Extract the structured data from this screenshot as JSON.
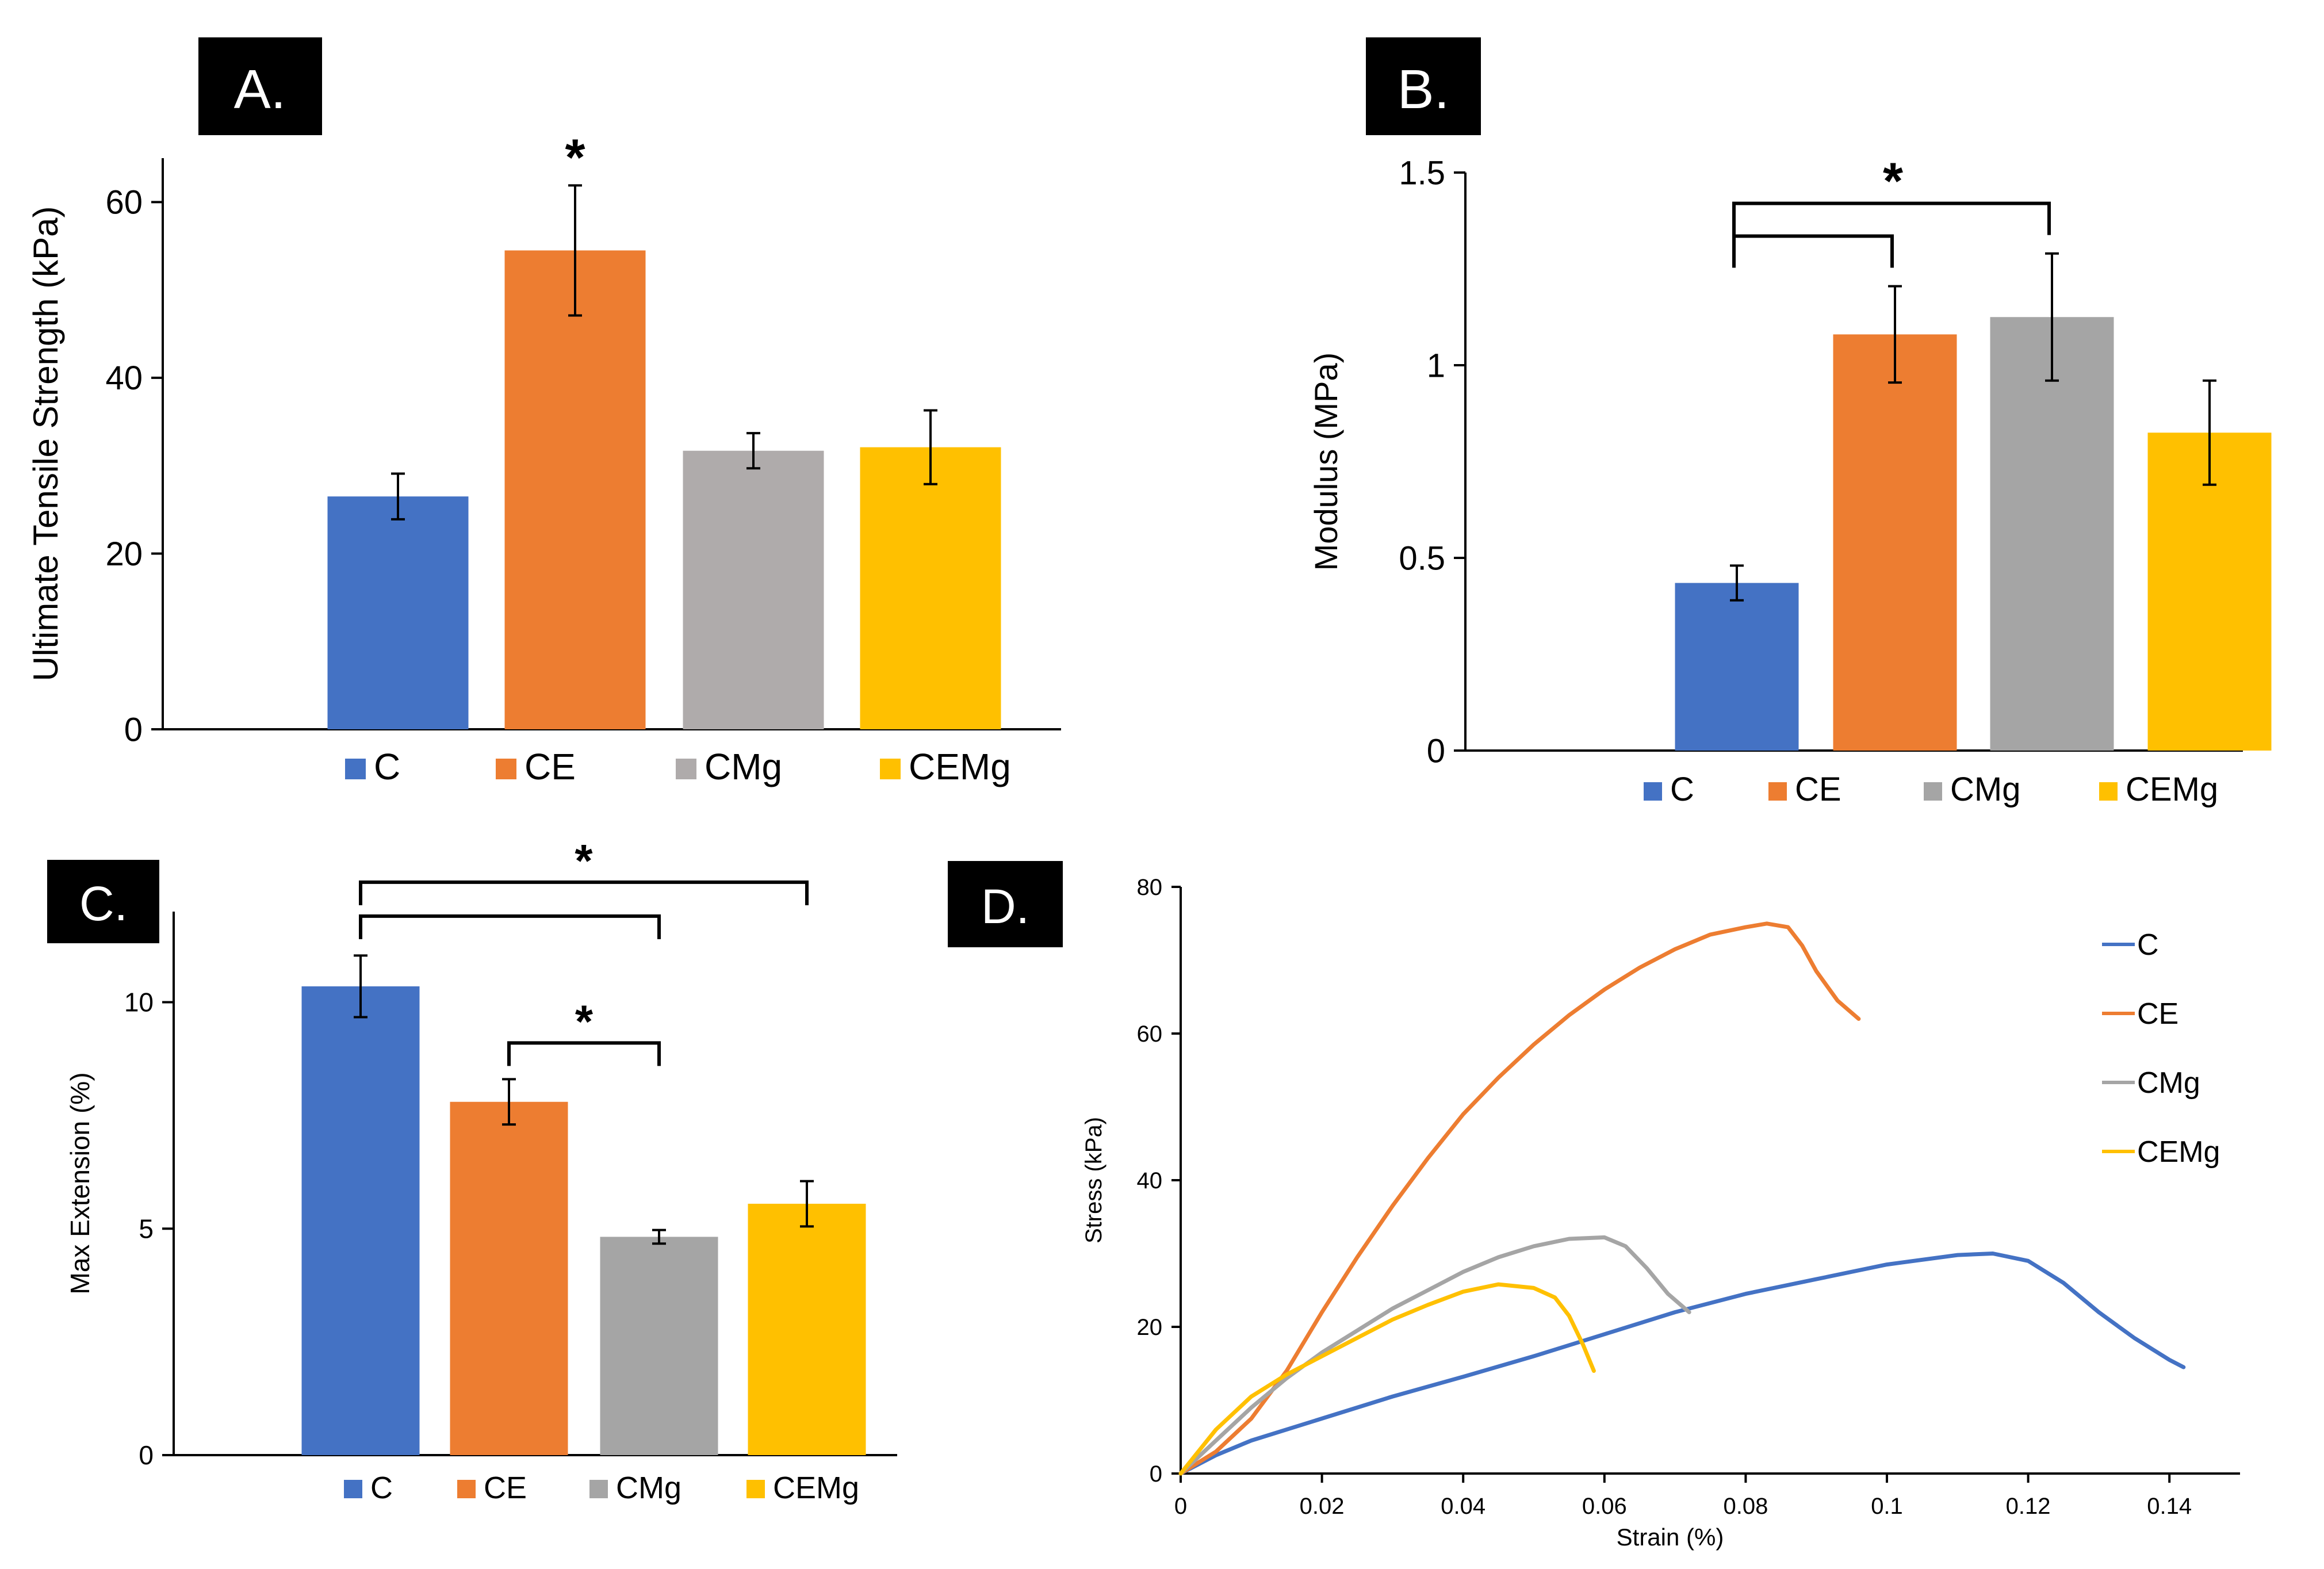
{
  "panel_labels": [
    "A.",
    "B.",
    "C.",
    "D."
  ],
  "chart_data": [
    {
      "id": "A",
      "type": "bar",
      "title": "",
      "ylabel": "Ultimate Tensile Strength (kPa)",
      "xlabel": "",
      "ylim": [
        0,
        65
      ],
      "yticks": [
        0,
        20,
        40,
        60
      ],
      "ytick_labels": [
        "0",
        "20",
        "40",
        "60"
      ],
      "categories": [
        "C",
        "CE",
        "CMg",
        "CEMg"
      ],
      "values": [
        26.5,
        54.5,
        31.7,
        32.1
      ],
      "errors": [
        2.6,
        7.4,
        2.0,
        4.2
      ],
      "colors": [
        "#4472C4",
        "#ED7D31",
        "#AFABAB",
        "#FFC000"
      ],
      "legend": [
        "C",
        "CE",
        "CMg",
        "CEMg"
      ],
      "significance": [
        {
          "label": "*",
          "bar": 1
        }
      ]
    },
    {
      "id": "B",
      "type": "bar",
      "title": "",
      "ylabel": "Modulus (MPa)",
      "xlabel": "",
      "ylim": [
        0,
        1.5
      ],
      "yticks": [
        0,
        0.5,
        1,
        1.5
      ],
      "ytick_labels": [
        "0",
        "0.5",
        "1",
        "1.5"
      ],
      "categories": [
        "C",
        "CE",
        "CMg",
        "CEMg"
      ],
      "values": [
        0.435,
        1.08,
        1.125,
        0.825
      ],
      "errors": [
        0.045,
        0.125,
        0.165,
        0.135
      ],
      "colors": [
        "#4472C4",
        "#ED7D31",
        "#A5A5A5",
        "#FFC000"
      ],
      "legend": [
        "C",
        "CE",
        "CMg",
        "CEMg"
      ],
      "brackets": [
        {
          "from": 0,
          "to": 1,
          "level": 1.335
        },
        {
          "from": 0,
          "to": 2,
          "level": 1.42
        }
      ],
      "significance_label": "*"
    },
    {
      "id": "C",
      "type": "bar",
      "title": "",
      "ylabel": "Max Extension (%)",
      "xlabel": "",
      "ylim": [
        0,
        12
      ],
      "yticks": [
        0,
        5,
        10
      ],
      "ytick_labels": [
        "0",
        "5",
        "10"
      ],
      "categories": [
        "C",
        "CE",
        "CMg",
        "CEMg"
      ],
      "values": [
        10.35,
        7.8,
        4.82,
        5.55
      ],
      "errors": [
        0.68,
        0.5,
        0.15,
        0.5
      ],
      "colors": [
        "#4472C4",
        "#ED7D31",
        "#A5A5A5",
        "#FFC000"
      ],
      "legend": [
        "C",
        "CE",
        "CMg",
        "CEMg"
      ],
      "brackets": [
        {
          "from": 0,
          "to": 3,
          "level": 12.65,
          "label": "*"
        },
        {
          "from": 0,
          "to": 2,
          "level": 11.9,
          "label": ""
        },
        {
          "from": 1,
          "to": 2,
          "level": 9.1,
          "label": "*"
        }
      ]
    },
    {
      "id": "D",
      "type": "line",
      "title": "",
      "xlabel": "Strain (%)",
      "ylabel": "Stress (kPa)",
      "xlim": [
        0,
        0.15
      ],
      "ylim": [
        0,
        80
      ],
      "xticks": [
        0,
        0.02,
        0.04,
        0.06,
        0.08,
        0.1,
        0.12,
        0.14
      ],
      "xtick_labels": [
        "0",
        "0.02",
        "0.04",
        "0.06",
        "0.08",
        "0.1",
        "0.12",
        "0.14"
      ],
      "yticks": [
        0,
        20,
        40,
        60,
        80
      ],
      "ytick_labels": [
        "0",
        "20",
        "40",
        "60",
        "80"
      ],
      "legend_position": "right",
      "series": [
        {
          "name": "C",
          "color": "#4472C4",
          "x": [
            0,
            0.005,
            0.01,
            0.02,
            0.03,
            0.04,
            0.05,
            0.06,
            0.07,
            0.08,
            0.09,
            0.1,
            0.11,
            0.115,
            0.12,
            0.125,
            0.13,
            0.135,
            0.14,
            0.142
          ],
          "y": [
            0,
            2.5,
            4.5,
            7.5,
            10.5,
            13.2,
            16,
            19,
            22,
            24.5,
            26.5,
            28.5,
            29.8,
            30,
            29,
            26,
            22,
            18.5,
            15.5,
            14.5
          ]
        },
        {
          "name": "CE",
          "color": "#ED7D31",
          "x": [
            0,
            0.005,
            0.01,
            0.015,
            0.02,
            0.025,
            0.03,
            0.035,
            0.04,
            0.045,
            0.05,
            0.055,
            0.06,
            0.065,
            0.07,
            0.075,
            0.08,
            0.083,
            0.086,
            0.088,
            0.09,
            0.093,
            0.096
          ],
          "y": [
            0,
            3,
            7.5,
            14,
            22,
            29.5,
            36.5,
            43,
            49,
            54,
            58.5,
            62.5,
            66,
            69,
            71.5,
            73.5,
            74.5,
            75,
            74.5,
            72,
            68.5,
            64.5,
            62
          ]
        },
        {
          "name": "CMg",
          "color": "#A5A5A5",
          "x": [
            0,
            0.005,
            0.01,
            0.015,
            0.02,
            0.025,
            0.03,
            0.035,
            0.04,
            0.045,
            0.05,
            0.055,
            0.06,
            0.063,
            0.066,
            0.069,
            0.072
          ],
          "y": [
            0,
            4.5,
            9,
            13,
            16.5,
            19.5,
            22.5,
            25,
            27.5,
            29.5,
            31,
            32,
            32.2,
            31,
            28,
            24.5,
            22
          ]
        },
        {
          "name": "CEMg",
          "color": "#FFC000",
          "x": [
            0,
            0.005,
            0.01,
            0.015,
            0.02,
            0.025,
            0.03,
            0.035,
            0.04,
            0.045,
            0.05,
            0.053,
            0.055,
            0.057,
            0.0585
          ],
          "y": [
            0,
            6,
            10.5,
            13.5,
            16,
            18.5,
            21,
            23,
            24.8,
            25.8,
            25.3,
            24,
            21.5,
            17.5,
            14
          ]
        }
      ]
    }
  ]
}
